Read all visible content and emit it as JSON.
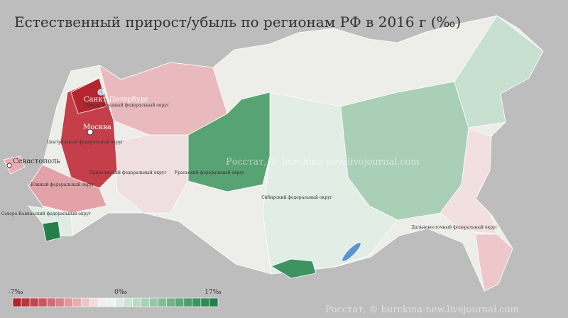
{
  "title": "Естественный прирост/убыль по регионам РФ в 2016 г (‰)",
  "cities": [
    {
      "label": "Санкт-Петербург"
    },
    {
      "label": "Москва"
    },
    {
      "label": "Севастополь"
    }
  ],
  "districts": [
    {
      "label": "Северо-Западный федеральный округ"
    },
    {
      "label": "Центральный федеральный округ"
    },
    {
      "label": "Приволжский федеральный округ"
    },
    {
      "label": "Южный федеральный округ"
    },
    {
      "label": "Северо-Кавказский федеральный округ"
    },
    {
      "label": "Уральский федеральный округ"
    },
    {
      "label": "Сибирский федеральный округ"
    },
    {
      "label": "Дальневосточный федеральный округ"
    }
  ],
  "watermarks": [
    "Росстат, © burckina-new.livejournal.com",
    "Росстат, © burckina-new.livejournal.com"
  ],
  "legend": {
    "labels": [
      "-7‰",
      "0‰",
      "17‰"
    ],
    "colors": [
      "#b3252f",
      "#bb3540",
      "#c3454f",
      "#cb5660",
      "#d26a73",
      "#d98088",
      "#e0979d",
      "#e7aeb2",
      "#edc6c8",
      "#f2dcdd",
      "#f5eded",
      "#eef3ef",
      "#dfece3",
      "#cfe3d5",
      "#bddac7",
      "#aad0b8",
      "#97c6a8",
      "#84bc99",
      "#71b28a",
      "#5fa87b",
      "#4e9e6d",
      "#3e9460",
      "#318a55",
      "#267f4b"
    ]
  }
}
